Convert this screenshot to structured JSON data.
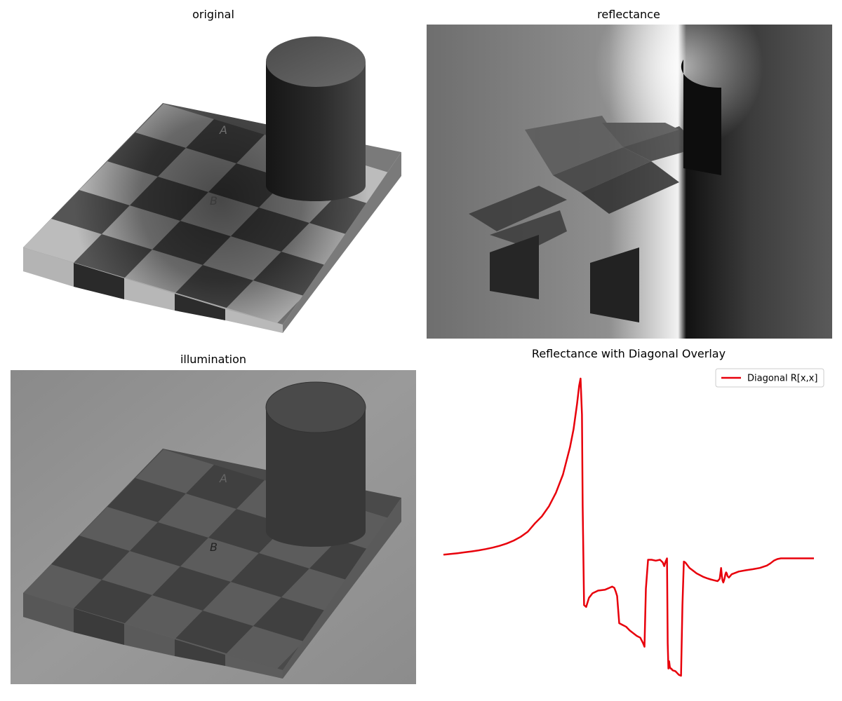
{
  "panels": {
    "original": {
      "title": "original"
    },
    "reflectance": {
      "title": "reflectance"
    },
    "illumination": {
      "title": "illumination"
    },
    "overlay": {
      "title": "Reflectance with Diagonal Overlay"
    }
  },
  "board_labels": {
    "square_a": "A",
    "square_b": "B"
  },
  "chart_data": {
    "type": "line",
    "title": "Reflectance with Diagonal Overlay",
    "axes_visible": false,
    "legend": {
      "placement": "top-right",
      "entries": [
        "Diagonal R[x,x]"
      ]
    },
    "series": [
      {
        "name": "Diagonal R[x,x]",
        "color": "#e8000b",
        "x": [
          0,
          10,
          20,
          30,
          40,
          50,
          60,
          70,
          80,
          90,
          100,
          110,
          120,
          130,
          140,
          150,
          160,
          170,
          180,
          185,
          190,
          193,
          195,
          197,
          198,
          200,
          203,
          207,
          212,
          220,
          230,
          236,
          240,
          243,
          245,
          247,
          250,
          255,
          260,
          265,
          270,
          275,
          280,
          284,
          286,
          288,
          291,
          296,
          302,
          308,
          312,
          314,
          316,
          318,
          319,
          320,
          321,
          322,
          323,
          324,
          326,
          330,
          335,
          338,
          340,
          342,
          344,
          346,
          348,
          350,
          355,
          360,
          365,
          370,
          375,
          380,
          385,
          390,
          393,
          395,
          396,
          397,
          398,
          399,
          400,
          401,
          402,
          403,
          404,
          406,
          410,
          420,
          430,
          440,
          450,
          460,
          465,
          470,
          475,
          480,
          490,
          500,
          510,
          520,
          527
        ],
        "values": [
          -0.72,
          -0.68,
          -0.64,
          -0.59,
          -0.54,
          -0.48,
          -0.41,
          -0.33,
          -0.23,
          -0.1,
          0.06,
          0.27,
          0.55,
          1.0,
          1.4,
          1.95,
          2.7,
          3.7,
          5.2,
          6.2,
          7.6,
          8.6,
          9.0,
          7.0,
          2.0,
          -3.5,
          -3.6,
          -3.1,
          -2.85,
          -2.7,
          -2.65,
          -2.55,
          -2.48,
          -2.55,
          -2.75,
          -3.0,
          -4.5,
          -4.6,
          -4.7,
          -4.9,
          -5.05,
          -5.2,
          -5.3,
          -5.6,
          -5.8,
          -2.6,
          -1.0,
          -1.0,
          -1.05,
          -1.0,
          -1.15,
          -1.35,
          -1.1,
          -0.92,
          -5.6,
          -7.0,
          -6.6,
          -6.9,
          -7.0,
          -7.0,
          -7.1,
          -7.15,
          -7.35,
          -7.4,
          -3.5,
          -1.1,
          -1.15,
          -1.25,
          -1.35,
          -1.45,
          -1.6,
          -1.75,
          -1.85,
          -1.95,
          -2.02,
          -2.08,
          -2.13,
          -2.18,
          -2.05,
          -1.45,
          -1.9,
          -2.15,
          -2.25,
          -2.15,
          -2.0,
          -1.8,
          -1.7,
          -1.75,
          -1.9,
          -1.98,
          -1.8,
          -1.65,
          -1.58,
          -1.52,
          -1.45,
          -1.32,
          -1.2,
          -1.05,
          -0.96,
          -0.92,
          -0.92,
          -0.92,
          -0.92,
          -0.92,
          -0.92
        ]
      }
    ]
  }
}
